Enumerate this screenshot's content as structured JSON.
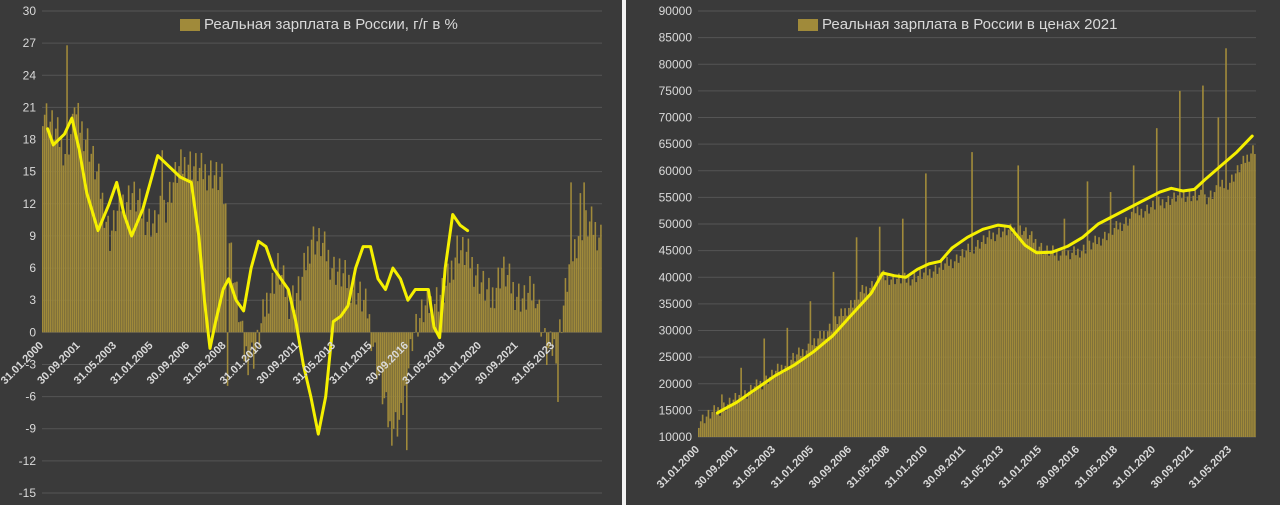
{
  "colors": {
    "background": "#3a3a3a",
    "bar": "#a08a3a",
    "line": "#f5f000",
    "text": "#d9d9d9",
    "grid": "#555555"
  },
  "chart_data": [
    {
      "type": "bar",
      "title": "",
      "legend": {
        "bar_series": "Реальная зарплата в России, г/г в %",
        "placement": "top"
      },
      "xlabel": "",
      "ylabel": "",
      "ylim": [
        -15,
        30
      ],
      "y_ticks": [
        "30",
        "27",
        "24",
        "21",
        "18",
        "15",
        "12",
        "9",
        "6",
        "3",
        "0",
        "-3",
        "-6",
        "-9",
        "-12",
        "-15"
      ],
      "x_tick_labels": [
        "31.01.2000",
        "30.09.2001",
        "31.05.2003",
        "31.01.2005",
        "30.09.2006",
        "31.05.2008",
        "31.01.2010",
        "30.09.2011",
        "31.05.2013",
        "31.01.2015",
        "30.09.2016",
        "31.05.2018",
        "31.01.2020",
        "30.09.2021",
        "31.05.2023"
      ],
      "grid": true,
      "anchors": [
        [
          0,
          21
        ],
        [
          6,
          19
        ],
        [
          12,
          17
        ],
        [
          18,
          20
        ],
        [
          24,
          18
        ],
        [
          30,
          14
        ],
        [
          36,
          9
        ],
        [
          42,
          12
        ],
        [
          48,
          13
        ],
        [
          54,
          11
        ],
        [
          60,
          10
        ],
        [
          66,
          12
        ],
        [
          72,
          15
        ],
        [
          78,
          16
        ],
        [
          84,
          15
        ],
        [
          90,
          15
        ],
        [
          96,
          14
        ],
        [
          102,
          6
        ],
        [
          108,
          -2
        ],
        [
          114,
          -2
        ],
        [
          120,
          3
        ],
        [
          126,
          6
        ],
        [
          132,
          3
        ],
        [
          138,
          4
        ],
        [
          144,
          9
        ],
        [
          150,
          8
        ],
        [
          156,
          6
        ],
        [
          162,
          5
        ],
        [
          168,
          4
        ],
        [
          174,
          2
        ],
        [
          180,
          -4
        ],
        [
          186,
          -9
        ],
        [
          192,
          -8
        ],
        [
          198,
          0
        ],
        [
          204,
          2
        ],
        [
          210,
          3
        ],
        [
          216,
          4
        ],
        [
          222,
          8
        ],
        [
          228,
          7
        ],
        [
          234,
          5
        ],
        [
          240,
          3
        ],
        [
          246,
          6
        ],
        [
          252,
          4
        ],
        [
          258,
          3
        ],
        [
          264,
          4
        ],
        [
          270,
          -2
        ],
        [
          276,
          -1
        ],
        [
          282,
          6
        ],
        [
          288,
          10
        ],
        [
          294,
          10
        ],
        [
          299,
          9
        ]
      ],
      "trend": [
        [
          3,
          19
        ],
        [
          6,
          17.5
        ],
        [
          12,
          18.5
        ],
        [
          16,
          20
        ],
        [
          20,
          17
        ],
        [
          24,
          13
        ],
        [
          30,
          9.5
        ],
        [
          36,
          12
        ],
        [
          40,
          14
        ],
        [
          44,
          11
        ],
        [
          48,
          9
        ],
        [
          54,
          11.5
        ],
        [
          58,
          14
        ],
        [
          62,
          16.5
        ],
        [
          68,
          15.5
        ],
        [
          74,
          14.5
        ],
        [
          80,
          14
        ],
        [
          84,
          9
        ],
        [
          87,
          3
        ],
        [
          90,
          -1.5
        ],
        [
          93,
          1
        ],
        [
          97,
          4
        ],
        [
          100,
          5
        ],
        [
          104,
          3
        ],
        [
          108,
          2
        ],
        [
          112,
          6
        ],
        [
          116,
          8.5
        ],
        [
          120,
          8
        ],
        [
          124,
          6
        ],
        [
          128,
          5
        ],
        [
          132,
          4
        ],
        [
          136,
          1
        ],
        [
          140,
          -3
        ],
        [
          144,
          -6
        ],
        [
          148,
          -9.5
        ],
        [
          152,
          -6
        ],
        [
          156,
          1
        ],
        [
          160,
          1.5
        ],
        [
          164,
          2.5
        ],
        [
          168,
          6
        ],
        [
          172,
          8
        ],
        [
          176,
          8
        ],
        [
          180,
          5
        ],
        [
          184,
          4
        ],
        [
          188,
          6
        ],
        [
          192,
          5
        ],
        [
          196,
          3
        ],
        [
          200,
          4
        ],
        [
          204,
          4
        ],
        [
          207,
          4
        ],
        [
          210,
          0.5
        ],
        [
          213,
          -0.5
        ],
        [
          216,
          6
        ],
        [
          220,
          11
        ],
        [
          224,
          10
        ],
        [
          228,
          9.5
        ]
      ],
      "trend_x_span": 300,
      "bar_count": 300,
      "spikes": [
        [
          13,
          26.8
        ],
        [
          17,
          21
        ],
        [
          64,
          17
        ],
        [
          99,
          -5
        ],
        [
          110,
          -4
        ],
        [
          195,
          -11
        ],
        [
          276,
          -6.5
        ],
        [
          283,
          14
        ],
        [
          290,
          14
        ],
        [
          288,
          13
        ]
      ]
    },
    {
      "type": "bar",
      "title": "",
      "legend": {
        "bar_series": "Реальная зарплата в России в ценах 2021",
        "placement": "top"
      },
      "xlabel": "",
      "ylabel": "",
      "ylim": [
        10000,
        90000
      ],
      "y_ticks": [
        "90000",
        "85000",
        "80000",
        "75000",
        "70000",
        "65000",
        "60000",
        "55000",
        "50000",
        "45000",
        "40000",
        "35000",
        "30000",
        "25000",
        "20000",
        "15000",
        "10000"
      ],
      "x_tick_labels": [
        "31.01.2000",
        "30.09.2001",
        "31.05.2003",
        "31.01.2005",
        "30.09.2006",
        "31.05.2008",
        "31.01.2010",
        "30.09.2011",
        "31.05.2013",
        "31.01.2015",
        "30.09.2016",
        "31.05.2018",
        "31.01.2020",
        "30.09.2021",
        "31.05.2023"
      ],
      "grid": true,
      "anchors": [
        [
          0,
          13000
        ],
        [
          12,
          15500
        ],
        [
          24,
          18000
        ],
        [
          36,
          21000
        ],
        [
          48,
          24500
        ],
        [
          60,
          27500
        ],
        [
          72,
          32000
        ],
        [
          84,
          37000
        ],
        [
          96,
          40000
        ],
        [
          108,
          39500
        ],
        [
          120,
          41000
        ],
        [
          132,
          43000
        ],
        [
          144,
          46000
        ],
        [
          156,
          48500
        ],
        [
          168,
          49000
        ],
        [
          180,
          45000
        ],
        [
          192,
          44000
        ],
        [
          204,
          46000
        ],
        [
          216,
          49000
        ],
        [
          228,
          52000
        ],
        [
          240,
          54000
        ],
        [
          252,
          55500
        ],
        [
          264,
          55000
        ],
        [
          276,
          58000
        ],
        [
          288,
          64000
        ],
        [
          299,
          66000
        ]
      ],
      "trend": [
        [
          10,
          14500
        ],
        [
          20,
          16500
        ],
        [
          30,
          19000
        ],
        [
          40,
          21500
        ],
        [
          50,
          23500
        ],
        [
          60,
          26000
        ],
        [
          70,
          29000
        ],
        [
          80,
          33000
        ],
        [
          90,
          37000
        ],
        [
          96,
          40800
        ],
        [
          102,
          40300
        ],
        [
          108,
          40000
        ],
        [
          114,
          41500
        ],
        [
          120,
          42500
        ],
        [
          126,
          43000
        ],
        [
          132,
          45500
        ],
        [
          140,
          47500
        ],
        [
          148,
          49000
        ],
        [
          156,
          49800
        ],
        [
          162,
          49500
        ],
        [
          170,
          46000
        ],
        [
          176,
          44600
        ],
        [
          184,
          44700
        ],
        [
          192,
          45800
        ],
        [
          200,
          47500
        ],
        [
          208,
          50000
        ],
        [
          216,
          51500
        ],
        [
          224,
          53000
        ],
        [
          232,
          54500
        ],
        [
          240,
          56000
        ],
        [
          246,
          56700
        ],
        [
          252,
          56200
        ],
        [
          258,
          56500
        ],
        [
          264,
          58500
        ],
        [
          272,
          61000
        ],
        [
          280,
          63500
        ],
        [
          288,
          66500
        ]
      ],
      "trend_x_span": 290,
      "bar_count": 290,
      "spikes": [
        [
          12,
          18000
        ],
        [
          22,
          23000
        ],
        [
          34,
          28500
        ],
        [
          46,
          30500
        ],
        [
          58,
          35500
        ],
        [
          70,
          41000
        ],
        [
          82,
          47500
        ],
        [
          94,
          49500
        ],
        [
          106,
          51000
        ],
        [
          118,
          59500
        ],
        [
          142,
          63500
        ],
        [
          166,
          61000
        ],
        [
          190,
          51000
        ],
        [
          202,
          58000
        ],
        [
          214,
          56000
        ],
        [
          226,
          61000
        ],
        [
          238,
          68000
        ],
        [
          250,
          75000
        ],
        [
          262,
          76000
        ],
        [
          274,
          83000
        ],
        [
          270,
          70000
        ]
      ]
    }
  ]
}
